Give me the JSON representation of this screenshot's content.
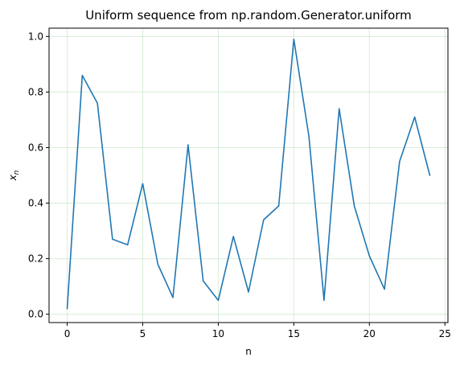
{
  "chart_data": {
    "type": "line",
    "title": "Uniform sequence from np.random.Generator.uniform",
    "xlabel": "n",
    "ylabel": "x",
    "ylabel_subscript": "n",
    "xlim": [
      -1.2,
      25.2
    ],
    "ylim": [
      -0.03,
      1.03
    ],
    "xticks": [
      0,
      5,
      10,
      15,
      20,
      25
    ],
    "xtick_labels": [
      "0",
      "5",
      "10",
      "15",
      "20",
      "25"
    ],
    "yticks": [
      0.0,
      0.2,
      0.4,
      0.6,
      0.8,
      1.0
    ],
    "ytick_labels": [
      "0.0",
      "0.2",
      "0.4",
      "0.6",
      "0.8",
      "1.0"
    ],
    "grid": true,
    "grid_color": "#2ca02c",
    "series": [
      {
        "color": "#1f77b4",
        "x": [
          0,
          1,
          2,
          3,
          4,
          5,
          6,
          7,
          8,
          9,
          10,
          11,
          12,
          13,
          14,
          15,
          16,
          17,
          18,
          19,
          20,
          21,
          22,
          23,
          24
        ],
        "values": [
          0.02,
          0.86,
          0.76,
          0.27,
          0.25,
          0.47,
          0.18,
          0.06,
          0.61,
          0.12,
          0.05,
          0.28,
          0.08,
          0.34,
          0.39,
          0.99,
          0.64,
          0.05,
          0.74,
          0.39,
          0.21,
          0.09,
          0.55,
          0.71,
          0.5
        ]
      }
    ]
  }
}
